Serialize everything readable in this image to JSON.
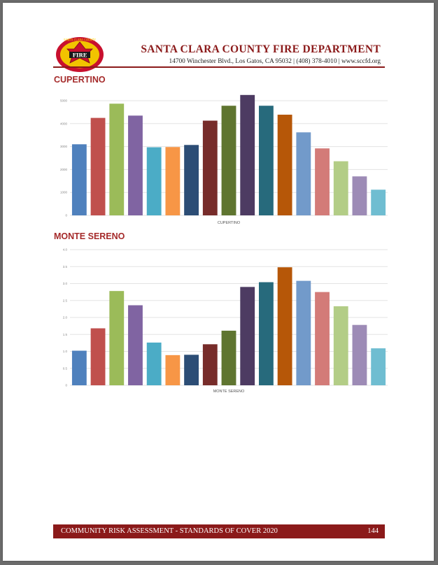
{
  "header": {
    "logo_text_top": "SANTA CLARA COUNTY",
    "logo_text_center": "FIRE",
    "title": "SANTA CLARA COUNTY FIRE DEPARTMENT",
    "address": "14700 Winchester Blvd., Los Gatos, CA 95032 | (408) 378-4010 | www.sccfd.org"
  },
  "sections": [
    {
      "title": "CUPERTINO"
    },
    {
      "title": "MONTE SERENO"
    }
  ],
  "colors": [
    "#4f81bd",
    "#c0504d",
    "#9bbb59",
    "#8064a2",
    "#4bacc6",
    "#f79646",
    "#2c4d75",
    "#772c2a",
    "#5f7530",
    "#4d3b62",
    "#276a7c",
    "#b65708",
    "#729aca",
    "#d37b78",
    "#b3cd86",
    "#9d8bb6",
    "#6fbdd1"
  ],
  "chart_data": [
    {
      "type": "bar",
      "title": "",
      "xlabel": "CUPERTINO",
      "ylabel": "",
      "ylim": [
        0,
        5000
      ],
      "yticks": [
        "0",
        "1000",
        "2000",
        "3000",
        "4000",
        "5000"
      ],
      "grid": true,
      "values": [
        3100,
        4250,
        4870,
        4350,
        2970,
        2980,
        3070,
        4130,
        4780,
        5250,
        4780,
        4390,
        3620,
        2920,
        2360,
        1700,
        1120
      ]
    },
    {
      "type": "bar",
      "title": "",
      "xlabel": "MONTE SERENO",
      "ylabel": "",
      "ylim": [
        0,
        4.0
      ],
      "yticks": [
        "0",
        "0.5",
        "1.0",
        "1.5",
        "2.0",
        "2.5",
        "3.0",
        "3.5",
        "4.0"
      ],
      "grid": true,
      "values": [
        1.02,
        1.68,
        2.78,
        2.36,
        1.26,
        0.89,
        0.9,
        1.21,
        1.61,
        2.9,
        3.04,
        3.48,
        3.08,
        2.75,
        2.33,
        1.78,
        1.09
      ]
    }
  ],
  "footer": {
    "left": "COMMUNITY RISK ASSESSMENT - STANDARDS OF COVER 2020",
    "page_number": "144"
  }
}
